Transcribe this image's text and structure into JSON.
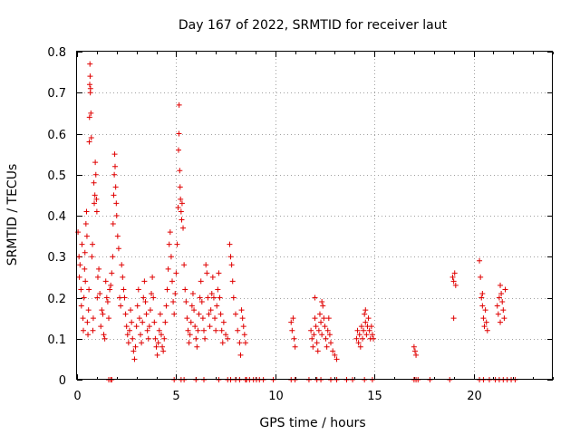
{
  "chart_data": {
    "type": "scatter",
    "title": "Day 167 of 2022, SRMTID for receiver laut",
    "xlabel": "GPS time / hours",
    "ylabel": "SRMTID / TECUs",
    "xlim": [
      0,
      24
    ],
    "ylim": [
      0,
      0.8
    ],
    "xticks": [
      0,
      5,
      10,
      15,
      20
    ],
    "yticks": [
      0,
      0.1,
      0.2,
      0.3,
      0.4,
      0.5,
      0.6,
      0.7,
      0.8
    ],
    "xtick_labels": [
      "0",
      "5",
      "10",
      "15",
      "20"
    ],
    "ytick_labels": [
      "0",
      "0.1",
      "0.2",
      "0.3",
      "0.4",
      "0.5",
      "0.6",
      "0.7",
      "0.8"
    ],
    "grid": true,
    "marker": "+",
    "color": "#e00000",
    "series": [
      {
        "name": "SRMTID",
        "points": [
          [
            0.05,
            0.36
          ],
          [
            0.1,
            0.3
          ],
          [
            0.12,
            0.25
          ],
          [
            0.15,
            0.28
          ],
          [
            0.2,
            0.22
          ],
          [
            0.22,
            0.18
          ],
          [
            0.25,
            0.33
          ],
          [
            0.3,
            0.15
          ],
          [
            0.32,
            0.12
          ],
          [
            0.35,
            0.2
          ],
          [
            0.38,
            0.27
          ],
          [
            0.4,
            0.31
          ],
          [
            0.42,
            0.24
          ],
          [
            0.45,
            0.38
          ],
          [
            0.48,
            0.41
          ],
          [
            0.5,
            0.35
          ],
          [
            0.52,
            0.14
          ],
          [
            0.55,
            0.11
          ],
          [
            0.58,
            0.17
          ],
          [
            0.6,
            0.22
          ],
          [
            0.62,
            0.58
          ],
          [
            0.63,
            0.64
          ],
          [
            0.64,
            0.72
          ],
          [
            0.65,
            0.77
          ],
          [
            0.66,
            0.74
          ],
          [
            0.67,
            0.7
          ],
          [
            0.68,
            0.71
          ],
          [
            0.7,
            0.65
          ],
          [
            0.72,
            0.59
          ],
          [
            0.75,
            0.3
          ],
          [
            0.78,
            0.33
          ],
          [
            0.8,
            0.12
          ],
          [
            0.82,
            0.15
          ],
          [
            0.85,
            0.48
          ],
          [
            0.87,
            0.43
          ],
          [
            0.9,
            0.45
          ],
          [
            0.92,
            0.53
          ],
          [
            0.95,
            0.5
          ],
          [
            0.98,
            0.44
          ],
          [
            1.0,
            0.41
          ],
          [
            1.02,
            0.2
          ],
          [
            1.05,
            0.25
          ],
          [
            1.1,
            0.27
          ],
          [
            1.15,
            0.21
          ],
          [
            1.2,
            0.13
          ],
          [
            1.25,
            0.17
          ],
          [
            1.3,
            0.16
          ],
          [
            1.35,
            0.11
          ],
          [
            1.4,
            0.1
          ],
          [
            1.45,
            0.24
          ],
          [
            1.5,
            0.2
          ],
          [
            1.55,
            0.19
          ],
          [
            1.6,
            0.15
          ],
          [
            1.65,
            0.22
          ],
          [
            1.7,
            0.23
          ],
          [
            1.75,
            0.26
          ],
          [
            1.8,
            0.3
          ],
          [
            1.82,
            0.38
          ],
          [
            1.85,
            0.45
          ],
          [
            1.88,
            0.5
          ],
          [
            1.9,
            0.55
          ],
          [
            1.92,
            0.52
          ],
          [
            1.95,
            0.47
          ],
          [
            1.98,
            0.43
          ],
          [
            2.0,
            0.4
          ],
          [
            2.05,
            0.35
          ],
          [
            2.1,
            0.32
          ],
          [
            2.15,
            0.2
          ],
          [
            2.2,
            0.18
          ],
          [
            2.25,
            0.28
          ],
          [
            2.3,
            0.25
          ],
          [
            2.35,
            0.22
          ],
          [
            2.4,
            0.2
          ],
          [
            2.45,
            0.16
          ],
          [
            2.5,
            0.13
          ],
          [
            2.55,
            0.11
          ],
          [
            2.6,
            0.09
          ],
          [
            2.65,
            0.12
          ],
          [
            2.7,
            0.17
          ],
          [
            2.75,
            0.14
          ],
          [
            2.8,
            0.1
          ],
          [
            2.85,
            0.07
          ],
          [
            2.9,
            0.05
          ],
          [
            2.95,
            0.08
          ],
          [
            3.0,
            0.13
          ],
          [
            3.05,
            0.18
          ],
          [
            3.1,
            0.22
          ],
          [
            3.15,
            0.15
          ],
          [
            3.2,
            0.11
          ],
          [
            3.25,
            0.09
          ],
          [
            3.3,
            0.14
          ],
          [
            3.35,
            0.2
          ],
          [
            3.4,
            0.24
          ],
          [
            3.45,
            0.19
          ],
          [
            3.5,
            0.16
          ],
          [
            3.55,
            0.12
          ],
          [
            3.6,
            0.1
          ],
          [
            3.65,
            0.13
          ],
          [
            3.7,
            0.17
          ],
          [
            3.75,
            0.21
          ],
          [
            3.8,
            0.25
          ],
          [
            3.85,
            0.2
          ],
          [
            3.9,
            0.14
          ],
          [
            3.95,
            0.1
          ],
          [
            4.0,
            0.08
          ],
          [
            4.05,
            0.06
          ],
          [
            4.1,
            0.09
          ],
          [
            4.15,
            0.12
          ],
          [
            4.2,
            0.16
          ],
          [
            4.25,
            0.11
          ],
          [
            4.3,
            0.08
          ],
          [
            4.35,
            0.07
          ],
          [
            4.4,
            0.1
          ],
          [
            4.45,
            0.14
          ],
          [
            4.5,
            0.18
          ],
          [
            4.55,
            0.22
          ],
          [
            4.6,
            0.27
          ],
          [
            4.65,
            0.33
          ],
          [
            4.7,
            0.36
          ],
          [
            4.75,
            0.3
          ],
          [
            4.8,
            0.24
          ],
          [
            4.85,
            0.19
          ],
          [
            4.9,
            0.16
          ],
          [
            4.95,
            0.21
          ],
          [
            5.0,
            0.26
          ],
          [
            5.05,
            0.33
          ],
          [
            5.1,
            0.42
          ],
          [
            5.12,
            0.56
          ],
          [
            5.14,
            0.6
          ],
          [
            5.15,
            0.67
          ],
          [
            5.18,
            0.51
          ],
          [
            5.2,
            0.47
          ],
          [
            5.22,
            0.44
          ],
          [
            5.25,
            0.41
          ],
          [
            5.28,
            0.39
          ],
          [
            5.3,
            0.43
          ],
          [
            5.35,
            0.37
          ],
          [
            5.4,
            0.28
          ],
          [
            5.45,
            0.22
          ],
          [
            5.5,
            0.19
          ],
          [
            5.55,
            0.15
          ],
          [
            5.6,
            0.12
          ],
          [
            5.65,
            0.09
          ],
          [
            5.7,
            0.11
          ],
          [
            5.75,
            0.14
          ],
          [
            5.8,
            0.18
          ],
          [
            5.85,
            0.21
          ],
          [
            5.9,
            0.17
          ],
          [
            5.95,
            0.13
          ],
          [
            6.0,
            0.1
          ],
          [
            6.05,
            0.08
          ],
          [
            6.1,
            0.12
          ],
          [
            6.15,
            0.16
          ],
          [
            6.2,
            0.2
          ],
          [
            6.25,
            0.24
          ],
          [
            6.3,
            0.19
          ],
          [
            6.35,
            0.15
          ],
          [
            6.4,
            0.12
          ],
          [
            6.45,
            0.1
          ],
          [
            6.5,
            0.28
          ],
          [
            6.55,
            0.26
          ],
          [
            6.6,
            0.2
          ],
          [
            6.65,
            0.16
          ],
          [
            6.7,
            0.13
          ],
          [
            6.75,
            0.17
          ],
          [
            6.8,
            0.21
          ],
          [
            6.85,
            0.25
          ],
          [
            6.9,
            0.2
          ],
          [
            6.95,
            0.15
          ],
          [
            7.0,
            0.12
          ],
          [
            7.05,
            0.18
          ],
          [
            7.1,
            0.22
          ],
          [
            7.15,
            0.26
          ],
          [
            7.2,
            0.2
          ],
          [
            7.25,
            0.16
          ],
          [
            7.3,
            0.12
          ],
          [
            7.35,
            0.09
          ],
          [
            7.4,
            0.14
          ],
          [
            7.5,
            0.11
          ],
          [
            7.6,
            0.1
          ],
          [
            7.7,
            0.33
          ],
          [
            7.75,
            0.3
          ],
          [
            7.8,
            0.28
          ],
          [
            7.85,
            0.24
          ],
          [
            7.9,
            0.2
          ],
          [
            8.0,
            0.16
          ],
          [
            8.1,
            0.12
          ],
          [
            8.2,
            0.09
          ],
          [
            8.25,
            0.06
          ],
          [
            8.3,
            0.17
          ],
          [
            8.35,
            0.15
          ],
          [
            8.4,
            0.13
          ],
          [
            8.45,
            0.11
          ],
          [
            8.5,
            0.09
          ],
          [
            10.8,
            0.14
          ],
          [
            10.85,
            0.12
          ],
          [
            10.9,
            0.15
          ],
          [
            10.95,
            0.1
          ],
          [
            11.0,
            0.08
          ],
          [
            11.8,
            0.12
          ],
          [
            11.85,
            0.1
          ],
          [
            11.9,
            0.08
          ],
          [
            11.95,
            0.11
          ],
          [
            12.0,
            0.15
          ],
          [
            12.05,
            0.13
          ],
          [
            12.1,
            0.09
          ],
          [
            12.15,
            0.07
          ],
          [
            12.2,
            0.12
          ],
          [
            12.25,
            0.16
          ],
          [
            12.3,
            0.14
          ],
          [
            12.35,
            0.11
          ],
          [
            12.4,
            0.18
          ],
          [
            12.45,
            0.15
          ],
          [
            12.5,
            0.13
          ],
          [
            12.55,
            0.1
          ],
          [
            12.6,
            0.08
          ],
          [
            12.65,
            0.12
          ],
          [
            12.7,
            0.15
          ],
          [
            12.75,
            0.11
          ],
          [
            12.8,
            0.09
          ],
          [
            12.9,
            0.07
          ],
          [
            13.0,
            0.06
          ],
          [
            13.1,
            0.05
          ],
          [
            12.35,
            0.19
          ],
          [
            12.0,
            0.2
          ],
          [
            14.1,
            0.1
          ],
          [
            14.15,
            0.12
          ],
          [
            14.2,
            0.09
          ],
          [
            14.25,
            0.11
          ],
          [
            14.3,
            0.08
          ],
          [
            14.35,
            0.13
          ],
          [
            14.4,
            0.1
          ],
          [
            14.45,
            0.12
          ],
          [
            14.5,
            0.16
          ],
          [
            14.55,
            0.14
          ],
          [
            14.6,
            0.11
          ],
          [
            14.65,
            0.13
          ],
          [
            14.7,
            0.15
          ],
          [
            14.75,
            0.12
          ],
          [
            14.8,
            0.1
          ],
          [
            14.85,
            0.13
          ],
          [
            14.9,
            0.11
          ],
          [
            14.95,
            0.1
          ],
          [
            14.55,
            0.17
          ],
          [
            17.0,
            0.08
          ],
          [
            17.05,
            0.07
          ],
          [
            17.1,
            0.06
          ],
          [
            18.95,
            0.25
          ],
          [
            19.0,
            0.24
          ],
          [
            19.05,
            0.26
          ],
          [
            19.1,
            0.23
          ],
          [
            19.0,
            0.15
          ],
          [
            20.3,
            0.29
          ],
          [
            20.35,
            0.25
          ],
          [
            20.4,
            0.2
          ],
          [
            20.45,
            0.18
          ],
          [
            20.5,
            0.15
          ],
          [
            20.55,
            0.13
          ],
          [
            20.6,
            0.17
          ],
          [
            20.65,
            0.14
          ],
          [
            20.7,
            0.12
          ],
          [
            20.45,
            0.21
          ],
          [
            21.2,
            0.18
          ],
          [
            21.25,
            0.16
          ],
          [
            21.3,
            0.2
          ],
          [
            21.35,
            0.23
          ],
          [
            21.4,
            0.21
          ],
          [
            21.45,
            0.19
          ],
          [
            21.5,
            0.17
          ],
          [
            21.55,
            0.15
          ],
          [
            21.6,
            0.22
          ],
          [
            21.35,
            0.14
          ]
        ],
        "zero_x": [
          1.6,
          1.7,
          1.75,
          4.9,
          5.25,
          5.4,
          6.0,
          6.4,
          7.15,
          7.6,
          7.75,
          8.0,
          8.2,
          8.5,
          8.55,
          8.7,
          8.9,
          9.05,
          9.2,
          9.4,
          9.9,
          10.8,
          11.0,
          11.7,
          12.1,
          12.3,
          12.8,
          13.1,
          13.6,
          13.9,
          14.5,
          14.9,
          17.0,
          17.1,
          17.2,
          17.8,
          18.8,
          20.3,
          20.5,
          20.8,
          21.1,
          21.3,
          21.5,
          21.7,
          21.9,
          22.1
        ]
      }
    ]
  }
}
